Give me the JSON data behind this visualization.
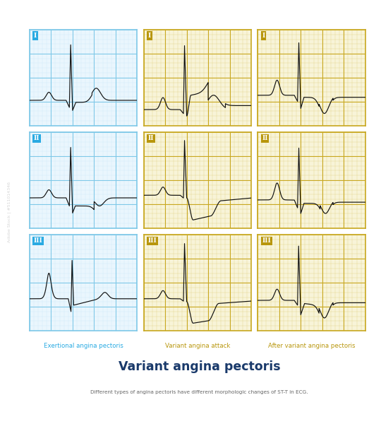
{
  "title": "Variant angina pectoris",
  "subtitle": "Different types of angina pectoris have different morphologic changes of ST-T in ECG.",
  "col_labels": [
    "Exertional angina pectoris",
    "Variant angina attack",
    "After variant angina pectoris"
  ],
  "row_labels": [
    "I",
    "II",
    "III"
  ],
  "col_colors": [
    "#29aae2",
    "#b8960c",
    "#b8960c"
  ],
  "label_bg_colors": [
    "#29aae2",
    "#b8960c",
    "#b8960c"
  ],
  "grid_minor_blue": "#c8e8f8",
  "grid_major_blue": "#7ec8e8",
  "grid_minor_gold": "#ddd080",
  "grid_major_gold": "#c8a820",
  "bg_color_blue": "#eaf6fd",
  "bg_color_gold": "#f8f4d8",
  "title_color": "#1a3a6b",
  "subtitle_color": "#666666",
  "ecg_color": "#111111",
  "watermark": "Adobe Stock | #511014346"
}
